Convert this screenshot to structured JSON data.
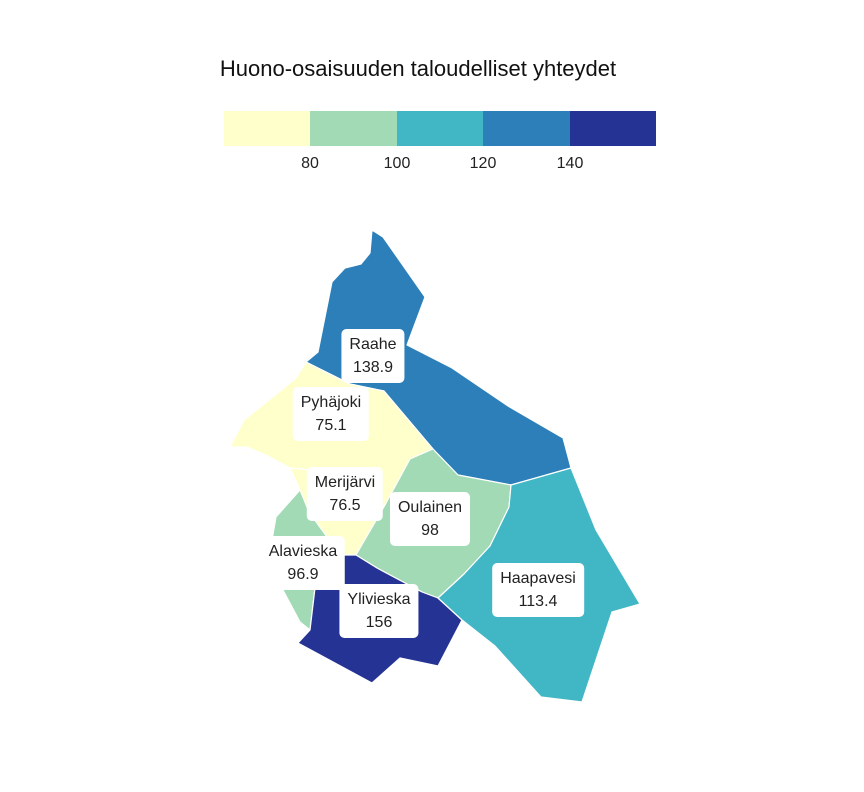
{
  "title": "Huono-osaisuuden taloudelliset yhteydet",
  "legend": {
    "ticks": [
      "80",
      "100",
      "120",
      "140"
    ],
    "colors": [
      "#ffffcc",
      "#a1dab4",
      "#41b6c4",
      "#2c7fb8",
      "#253494"
    ]
  },
  "regions": [
    {
      "name": "Raahe",
      "value": "138.9",
      "color": "#2c7fb8"
    },
    {
      "name": "Pyhäjoki",
      "value": "75.1",
      "color": "#ffffcc"
    },
    {
      "name": "Merijärvi",
      "value": "76.5",
      "color": "#ffffcc"
    },
    {
      "name": "Oulainen",
      "value": "98",
      "color": "#a1dab4"
    },
    {
      "name": "Alavieska",
      "value": "96.9",
      "color": "#a1dab4"
    },
    {
      "name": "Ylivieska",
      "value": "156",
      "color": "#253494"
    },
    {
      "name": "Haapavesi",
      "value": "113.4",
      "color": "#41b6c4"
    }
  ]
}
